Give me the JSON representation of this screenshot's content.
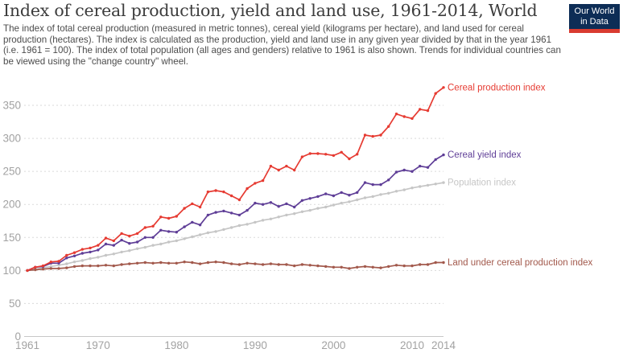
{
  "header": {
    "title": "Index of cereal production, yield and land use, 1961-2014, World",
    "subtitle": "The index of total cereal production (measured in metric tonnes), cereal yield (kilograms per hectare), and land used for cereal production (hectares). The index is calculated as the production, yield and land use in any given year divided by that in the year 1961 (i.e. 1961 = 100). The index of total population (all ages and genders) relative to 1961 is also shown. Trends for individual countries can be viewed using the \"change country\" wheel.",
    "logo": {
      "line1": "Our World",
      "line2": "in Data",
      "bg_color": "#0d2d56",
      "accent_color": "#d93b30"
    }
  },
  "chart_data": {
    "type": "line",
    "title": "Index of cereal production, yield and land use, 1961-2014, World",
    "xlabel": "",
    "ylabel": "",
    "ylim": [
      0,
      390
    ],
    "yticks": [
      0,
      50,
      100,
      150,
      200,
      250,
      300,
      350
    ],
    "xticks": [
      1961,
      1970,
      1980,
      1990,
      2000,
      2010,
      2014
    ],
    "grid": "horizontal-dashed",
    "legend_position": "right-end-labels",
    "x": [
      1961,
      1962,
      1963,
      1964,
      1965,
      1966,
      1967,
      1968,
      1969,
      1970,
      1971,
      1972,
      1973,
      1974,
      1975,
      1976,
      1977,
      1978,
      1979,
      1980,
      1981,
      1982,
      1983,
      1984,
      1985,
      1986,
      1987,
      1988,
      1989,
      1990,
      1991,
      1992,
      1993,
      1994,
      1995,
      1996,
      1997,
      1998,
      1999,
      2000,
      2001,
      2002,
      2003,
      2004,
      2005,
      2006,
      2007,
      2008,
      2009,
      2010,
      2011,
      2012,
      2013,
      2014
    ],
    "series": [
      {
        "name": "cereal-production-index",
        "label": "Cereal production index",
        "color": "#e63b32",
        "values": [
          100,
          105,
          107,
          113,
          114,
          123,
          127,
          132,
          134,
          138,
          149,
          145,
          156,
          152,
          156,
          165,
          167,
          181,
          179,
          182,
          194,
          201,
          196,
          219,
          221,
          219,
          213,
          207,
          224,
          232,
          236,
          258,
          252,
          258,
          252,
          272,
          277,
          277,
          276,
          274,
          279,
          269,
          276,
          305,
          303,
          305,
          318,
          337,
          333,
          330,
          344,
          342,
          368,
          377
        ]
      },
      {
        "name": "cereal-yield-index",
        "label": "Cereal yield index",
        "color": "#5f3e97",
        "values": [
          100,
          105,
          106,
          111,
          111,
          119,
          122,
          126,
          128,
          131,
          140,
          138,
          146,
          141,
          143,
          150,
          150,
          161,
          159,
          158,
          166,
          173,
          169,
          184,
          188,
          190,
          187,
          184,
          191,
          202,
          200,
          203,
          197,
          201,
          196,
          206,
          209,
          212,
          216,
          213,
          218,
          214,
          218,
          233,
          230,
          230,
          237,
          249,
          252,
          250,
          258,
          256,
          268,
          275
        ]
      },
      {
        "name": "population-index",
        "label": "Population index",
        "color": "#c6c6c6",
        "values": [
          100,
          102,
          104,
          106,
          108,
          110,
          113,
          115,
          118,
          120,
          123,
          125,
          128,
          130,
          133,
          135,
          138,
          140,
          143,
          145,
          148,
          151,
          154,
          157,
          159,
          162,
          165,
          168,
          170,
          173,
          176,
          178,
          181,
          184,
          186,
          189,
          191,
          194,
          196,
          199,
          202,
          204,
          207,
          210,
          212,
          215,
          217,
          220,
          222,
          225,
          227,
          229,
          231,
          233
        ]
      },
      {
        "name": "land-under-cereal-production-index",
        "label": "Land under cereal production index",
        "color": "#a2594c",
        "values": [
          100,
          101,
          102,
          103,
          103,
          104,
          106,
          107,
          107,
          107,
          108,
          107,
          109,
          110,
          111,
          112,
          111,
          112,
          111,
          111,
          113,
          112,
          110,
          112,
          113,
          112,
          110,
          109,
          111,
          110,
          109,
          110,
          109,
          109,
          107,
          109,
          108,
          107,
          106,
          105,
          105,
          103,
          105,
          106,
          105,
          104,
          106,
          108,
          107,
          107,
          109,
          109,
          112,
          112
        ]
      }
    ],
    "axis_color": "#c8c8c8",
    "gridline_color": "#dadada",
    "tick_label_color": "#a2a2a2"
  }
}
